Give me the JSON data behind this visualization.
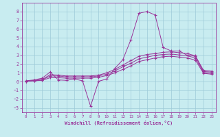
{
  "xlabel": "Windchill (Refroidissement éolien,°C)",
  "bg_color": "#c8ecf0",
  "grid_color": "#9ecad8",
  "line_color": "#993399",
  "xlim": [
    -0.5,
    23.5
  ],
  "ylim": [
    -3.5,
    9.0
  ],
  "xticks": [
    0,
    1,
    2,
    3,
    4,
    5,
    6,
    7,
    8,
    9,
    10,
    11,
    12,
    13,
    14,
    15,
    16,
    17,
    18,
    19,
    20,
    21,
    22,
    23
  ],
  "yticks": [
    -3,
    -2,
    -1,
    0,
    1,
    2,
    3,
    4,
    5,
    6,
    7,
    8
  ],
  "curve1_x": [
    0,
    1,
    2,
    3,
    4,
    5,
    6,
    7,
    8,
    9,
    10,
    11,
    12,
    13,
    14,
    15,
    16,
    17,
    18,
    19,
    20,
    21,
    22,
    23
  ],
  "curve1_y": [
    0.1,
    0.2,
    0.4,
    1.1,
    0.2,
    0.15,
    0.3,
    0.1,
    -2.8,
    0.05,
    0.3,
    1.5,
    2.5,
    4.8,
    7.8,
    8.0,
    7.6,
    3.9,
    3.5,
    3.5,
    3.0,
    2.9,
    1.3,
    1.2
  ],
  "curve2_x": [
    0,
    1,
    2,
    3,
    4,
    5,
    6,
    7,
    8,
    9,
    10,
    11,
    12,
    13,
    14,
    15,
    16,
    17,
    18,
    19,
    20,
    21,
    22,
    23
  ],
  "curve2_y": [
    0.05,
    0.15,
    0.25,
    0.8,
    0.75,
    0.65,
    0.65,
    0.65,
    0.65,
    0.75,
    1.0,
    1.4,
    1.9,
    2.4,
    2.9,
    3.1,
    3.2,
    3.35,
    3.4,
    3.3,
    3.2,
    2.95,
    1.15,
    1.1
  ],
  "curve3_x": [
    0,
    1,
    2,
    3,
    4,
    5,
    6,
    7,
    8,
    9,
    10,
    11,
    12,
    13,
    14,
    15,
    16,
    17,
    18,
    19,
    20,
    21,
    22,
    23
  ],
  "curve3_y": [
    0.05,
    0.1,
    0.2,
    0.65,
    0.65,
    0.55,
    0.55,
    0.55,
    0.55,
    0.65,
    0.85,
    1.2,
    1.7,
    2.1,
    2.6,
    2.8,
    3.0,
    3.1,
    3.15,
    3.05,
    2.95,
    2.7,
    1.05,
    0.95
  ],
  "curve4_x": [
    0,
    1,
    2,
    3,
    4,
    5,
    6,
    7,
    8,
    9,
    10,
    11,
    12,
    13,
    14,
    15,
    16,
    17,
    18,
    19,
    20,
    21,
    22,
    23
  ],
  "curve4_y": [
    0.05,
    0.1,
    0.15,
    0.45,
    0.45,
    0.4,
    0.4,
    0.4,
    0.4,
    0.5,
    0.7,
    1.0,
    1.4,
    1.8,
    2.3,
    2.5,
    2.7,
    2.85,
    2.9,
    2.8,
    2.7,
    2.45,
    0.95,
    0.85
  ]
}
